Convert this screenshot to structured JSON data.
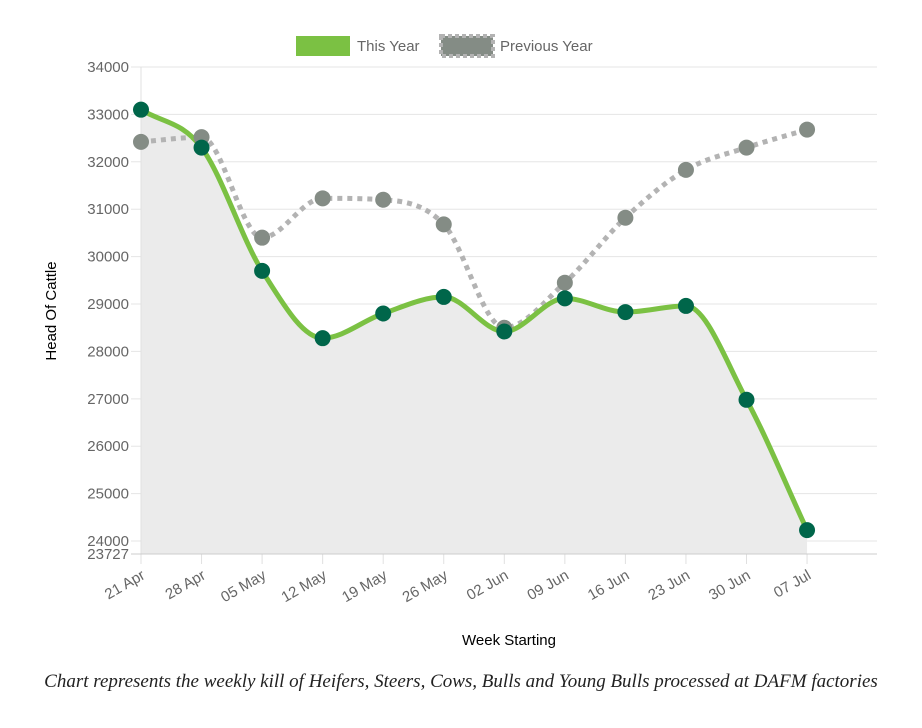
{
  "chart_data": {
    "type": "line",
    "x": [
      "21 Apr",
      "28 Apr",
      "05 May",
      "12 May",
      "19 May",
      "26 May",
      "02 Jun",
      "09 Jun",
      "16 Jun",
      "23 Jun",
      "30 Jun",
      "07 Jul"
    ],
    "series": [
      {
        "name": "This Year",
        "values": [
          33100,
          32300,
          29700,
          28280,
          28800,
          29150,
          28420,
          29120,
          28830,
          28960,
          26980,
          24230
        ],
        "color": "#7bc143",
        "point_color": "#00664a",
        "style": "solid",
        "filled_area": true
      },
      {
        "name": "Previous Year",
        "values": [
          32420,
          32520,
          30400,
          31230,
          31200,
          30680,
          28500,
          29450,
          30820,
          31830,
          32300,
          32680
        ],
        "color": "#b3b3b3",
        "point_color": "#848c85",
        "style": "dotted"
      }
    ],
    "xlabel": "Week Starting",
    "ylabel": "Head Of Cattle",
    "ylim": [
      23727,
      34000
    ],
    "yticks": [
      "34000",
      "33000",
      "32000",
      "31000",
      "30000",
      "29000",
      "28000",
      "27000",
      "26000",
      "25000",
      "24000",
      "23727"
    ],
    "grid": true,
    "legend": "top-center",
    "area_fill": "#ebebeb"
  },
  "caption": "Chart represents the weekly kill of Heifers, Steers, Cows, Bulls and Young Bulls processed at DAFM factories"
}
